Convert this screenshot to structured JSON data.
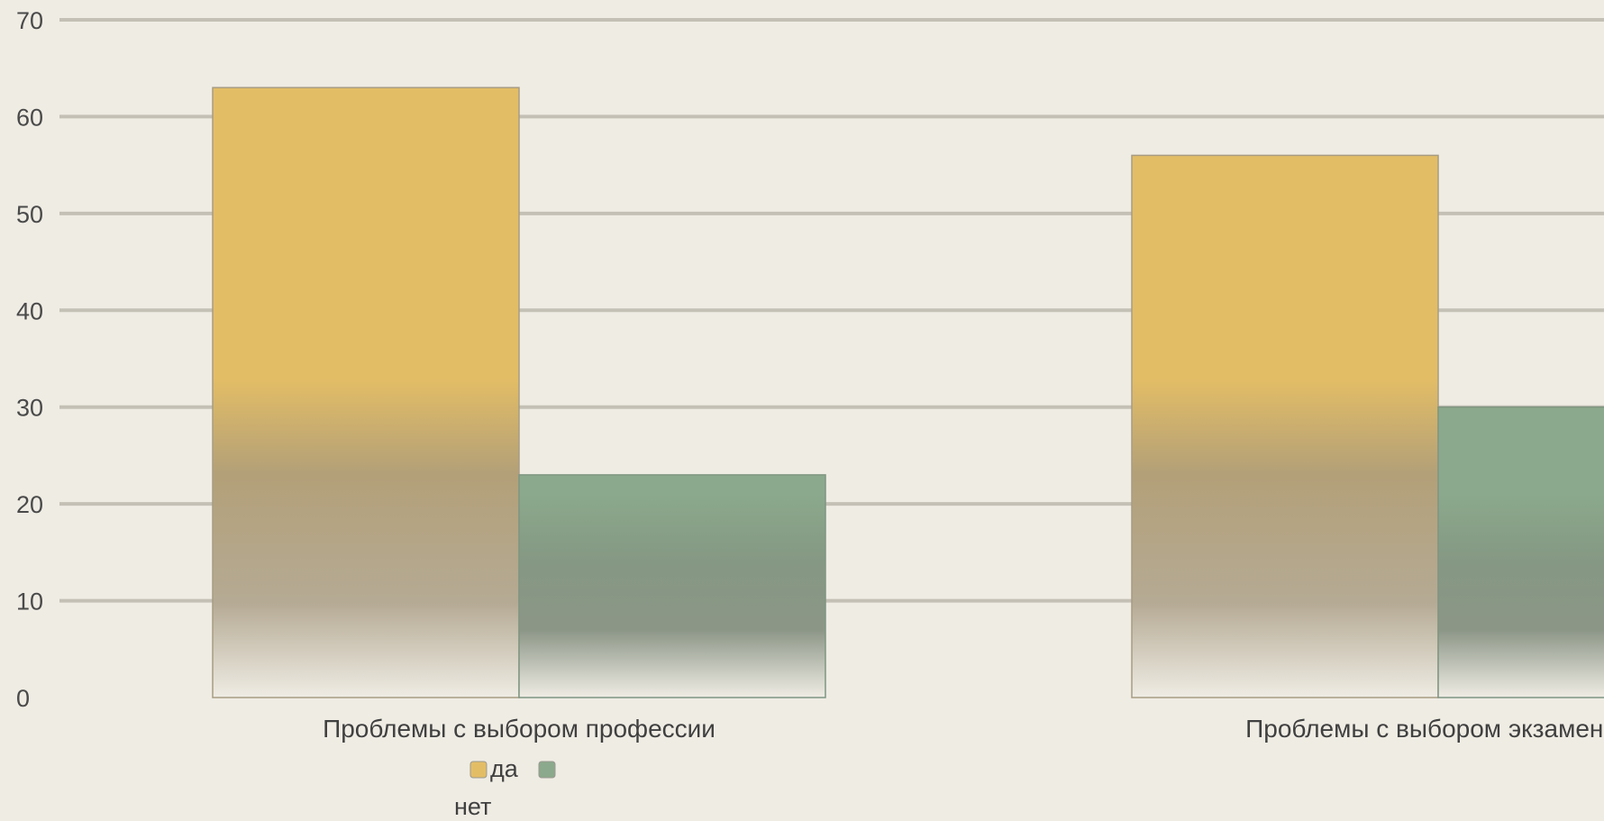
{
  "chart_data": {
    "type": "bar",
    "title": "",
    "xlabel": "",
    "ylabel": "",
    "ylim": [
      0,
      70
    ],
    "yticks": [
      0,
      10,
      20,
      30,
      40,
      50,
      60,
      70
    ],
    "categories": [
      "Проблемы с выбором профессии",
      "Проблемы с выбором экзаменов"
    ],
    "series": [
      {
        "name": "да",
        "values": [
          63,
          56
        ],
        "color": "#e3bd66"
      },
      {
        "name": "нет",
        "values": [
          23,
          30
        ],
        "color": "#8ba98c"
      }
    ],
    "grid": true,
    "legend_position": "bottom-left",
    "background": "#efece4",
    "gridline_color": "#c4c0b6"
  }
}
